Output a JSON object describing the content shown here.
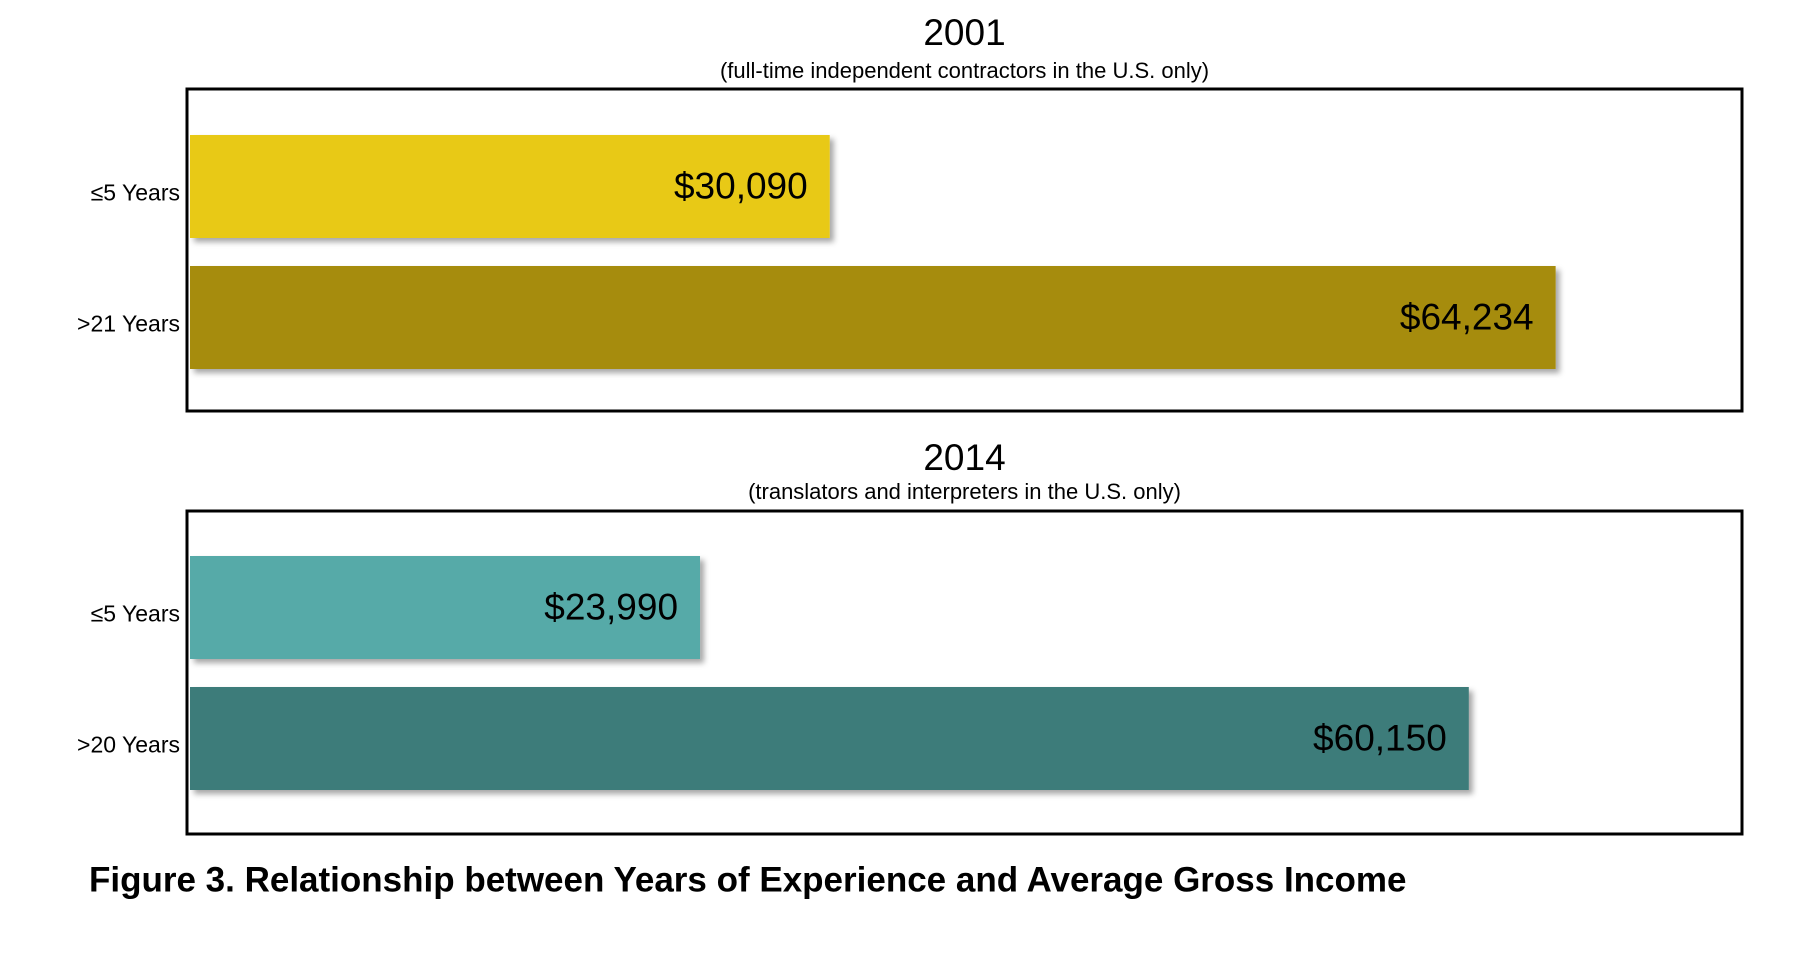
{
  "chart_data": [
    {
      "type": "hbar",
      "title": "2001",
      "subtitle": "(full-time independent contractors in the U.S. only)",
      "categories": [
        "≤5 Years",
        ">21 Years"
      ],
      "values": [
        30090,
        64234
      ],
      "value_labels": [
        "$30,090",
        "$64,234"
      ],
      "colors": [
        "#e8c914",
        "#a68c10"
      ],
      "xlim": [
        0,
        73000
      ]
    },
    {
      "type": "hbar",
      "title": "2014",
      "subtitle": "(translators and interpreters in the U.S. only)",
      "categories": [
        "≤5 Years",
        ">20 Years"
      ],
      "values": [
        23990,
        60150
      ],
      "value_labels": [
        "$23,990",
        "$60,150"
      ],
      "colors": [
        "#56aaa8",
        "#3e7b7a"
      ],
      "xlim": [
        0,
        73000
      ]
    }
  ],
  "caption": "Figure 3. Relationship between Years of Experience and Average Gross Income"
}
